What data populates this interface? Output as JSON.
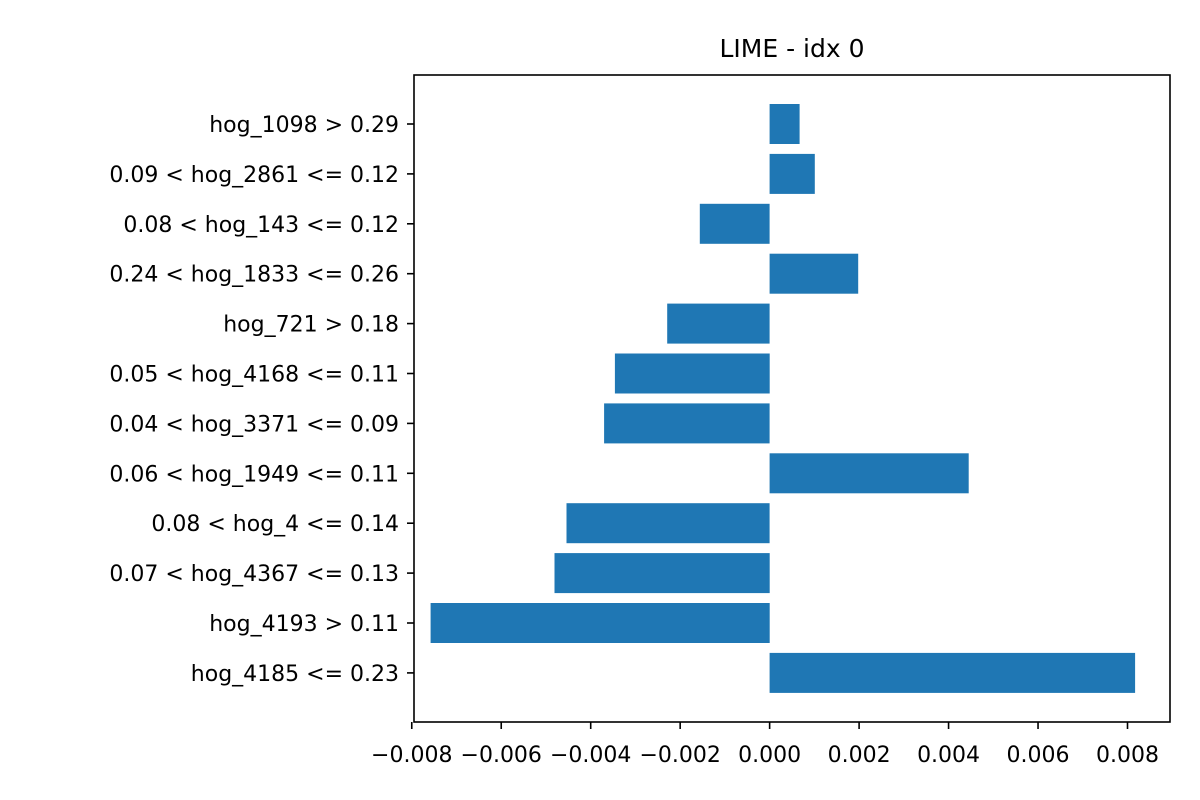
{
  "chart_data": {
    "type": "bar",
    "orientation": "horizontal",
    "title": "LIME - idx 0",
    "xlabel": "",
    "ylabel": "",
    "xlim": [
      -0.00795,
      0.00895
    ],
    "grid": false,
    "bar_color": "#1f77b4",
    "categories": [
      "hog_1098 > 0.29",
      "0.09 < hog_2861 <= 0.12",
      "0.08 < hog_143 <= 0.12",
      "0.24 < hog_1833 <= 0.26",
      "hog_721 > 0.18",
      "0.05 < hog_4168 <= 0.11",
      "0.04 < hog_3371 <= 0.09",
      "0.06 < hog_1949 <= 0.11",
      "0.08 < hog_4 <= 0.14",
      "0.07 < hog_4367 <= 0.13",
      "hog_4193 > 0.11",
      "hog_4185 <= 0.23"
    ],
    "values": [
      0.00067,
      0.00101,
      -0.00156,
      0.00198,
      -0.00229,
      -0.00346,
      -0.0037,
      0.00445,
      -0.00454,
      -0.00481,
      -0.00758,
      0.00817
    ],
    "xticks": [
      -0.008,
      -0.006,
      -0.004,
      -0.002,
      0.0,
      0.002,
      0.004,
      0.006,
      0.008
    ],
    "xtick_labels": [
      "−0.008",
      "−0.006",
      "−0.004",
      "−0.002",
      "0.000",
      "0.002",
      "0.004",
      "0.006",
      "0.008"
    ]
  }
}
